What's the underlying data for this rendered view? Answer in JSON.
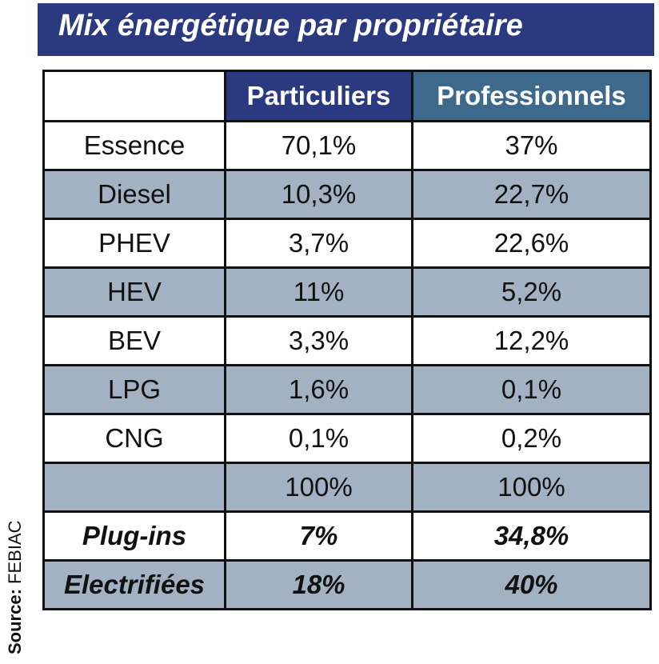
{
  "title": "Mix énergétique par propriétaire",
  "source_label": "Source:",
  "source_name": "FEBIAC",
  "colors": {
    "header_dark": "#2b3a80",
    "header_teal": "#3d6a8c",
    "row_shade": "#a3b2c3"
  },
  "chart_data": {
    "type": "table",
    "title": "Mix énergétique par propriétaire",
    "columns": [
      "",
      "Particuliers",
      "Professionnels"
    ],
    "rows": [
      {
        "label": "Essence",
        "values": [
          "70,1%",
          "37%"
        ]
      },
      {
        "label": "Diesel",
        "values": [
          "10,3%",
          "22,7%"
        ]
      },
      {
        "label": "PHEV",
        "values": [
          "3,7%",
          "22,6%"
        ]
      },
      {
        "label": "HEV",
        "values": [
          "11%",
          "5,2%"
        ]
      },
      {
        "label": "BEV",
        "values": [
          "3,3%",
          "12,2%"
        ]
      },
      {
        "label": "LPG",
        "values": [
          "1,6%",
          "0,1%"
        ]
      },
      {
        "label": "CNG",
        "values": [
          "0,1%",
          "0,2%"
        ]
      },
      {
        "label": "",
        "values": [
          "100%",
          "100%"
        ]
      },
      {
        "label": "Plug-ins",
        "values": [
          "7%",
          "34,8%"
        ]
      },
      {
        "label": "Electrifiées",
        "values": [
          "18%",
          "40%"
        ]
      }
    ]
  }
}
